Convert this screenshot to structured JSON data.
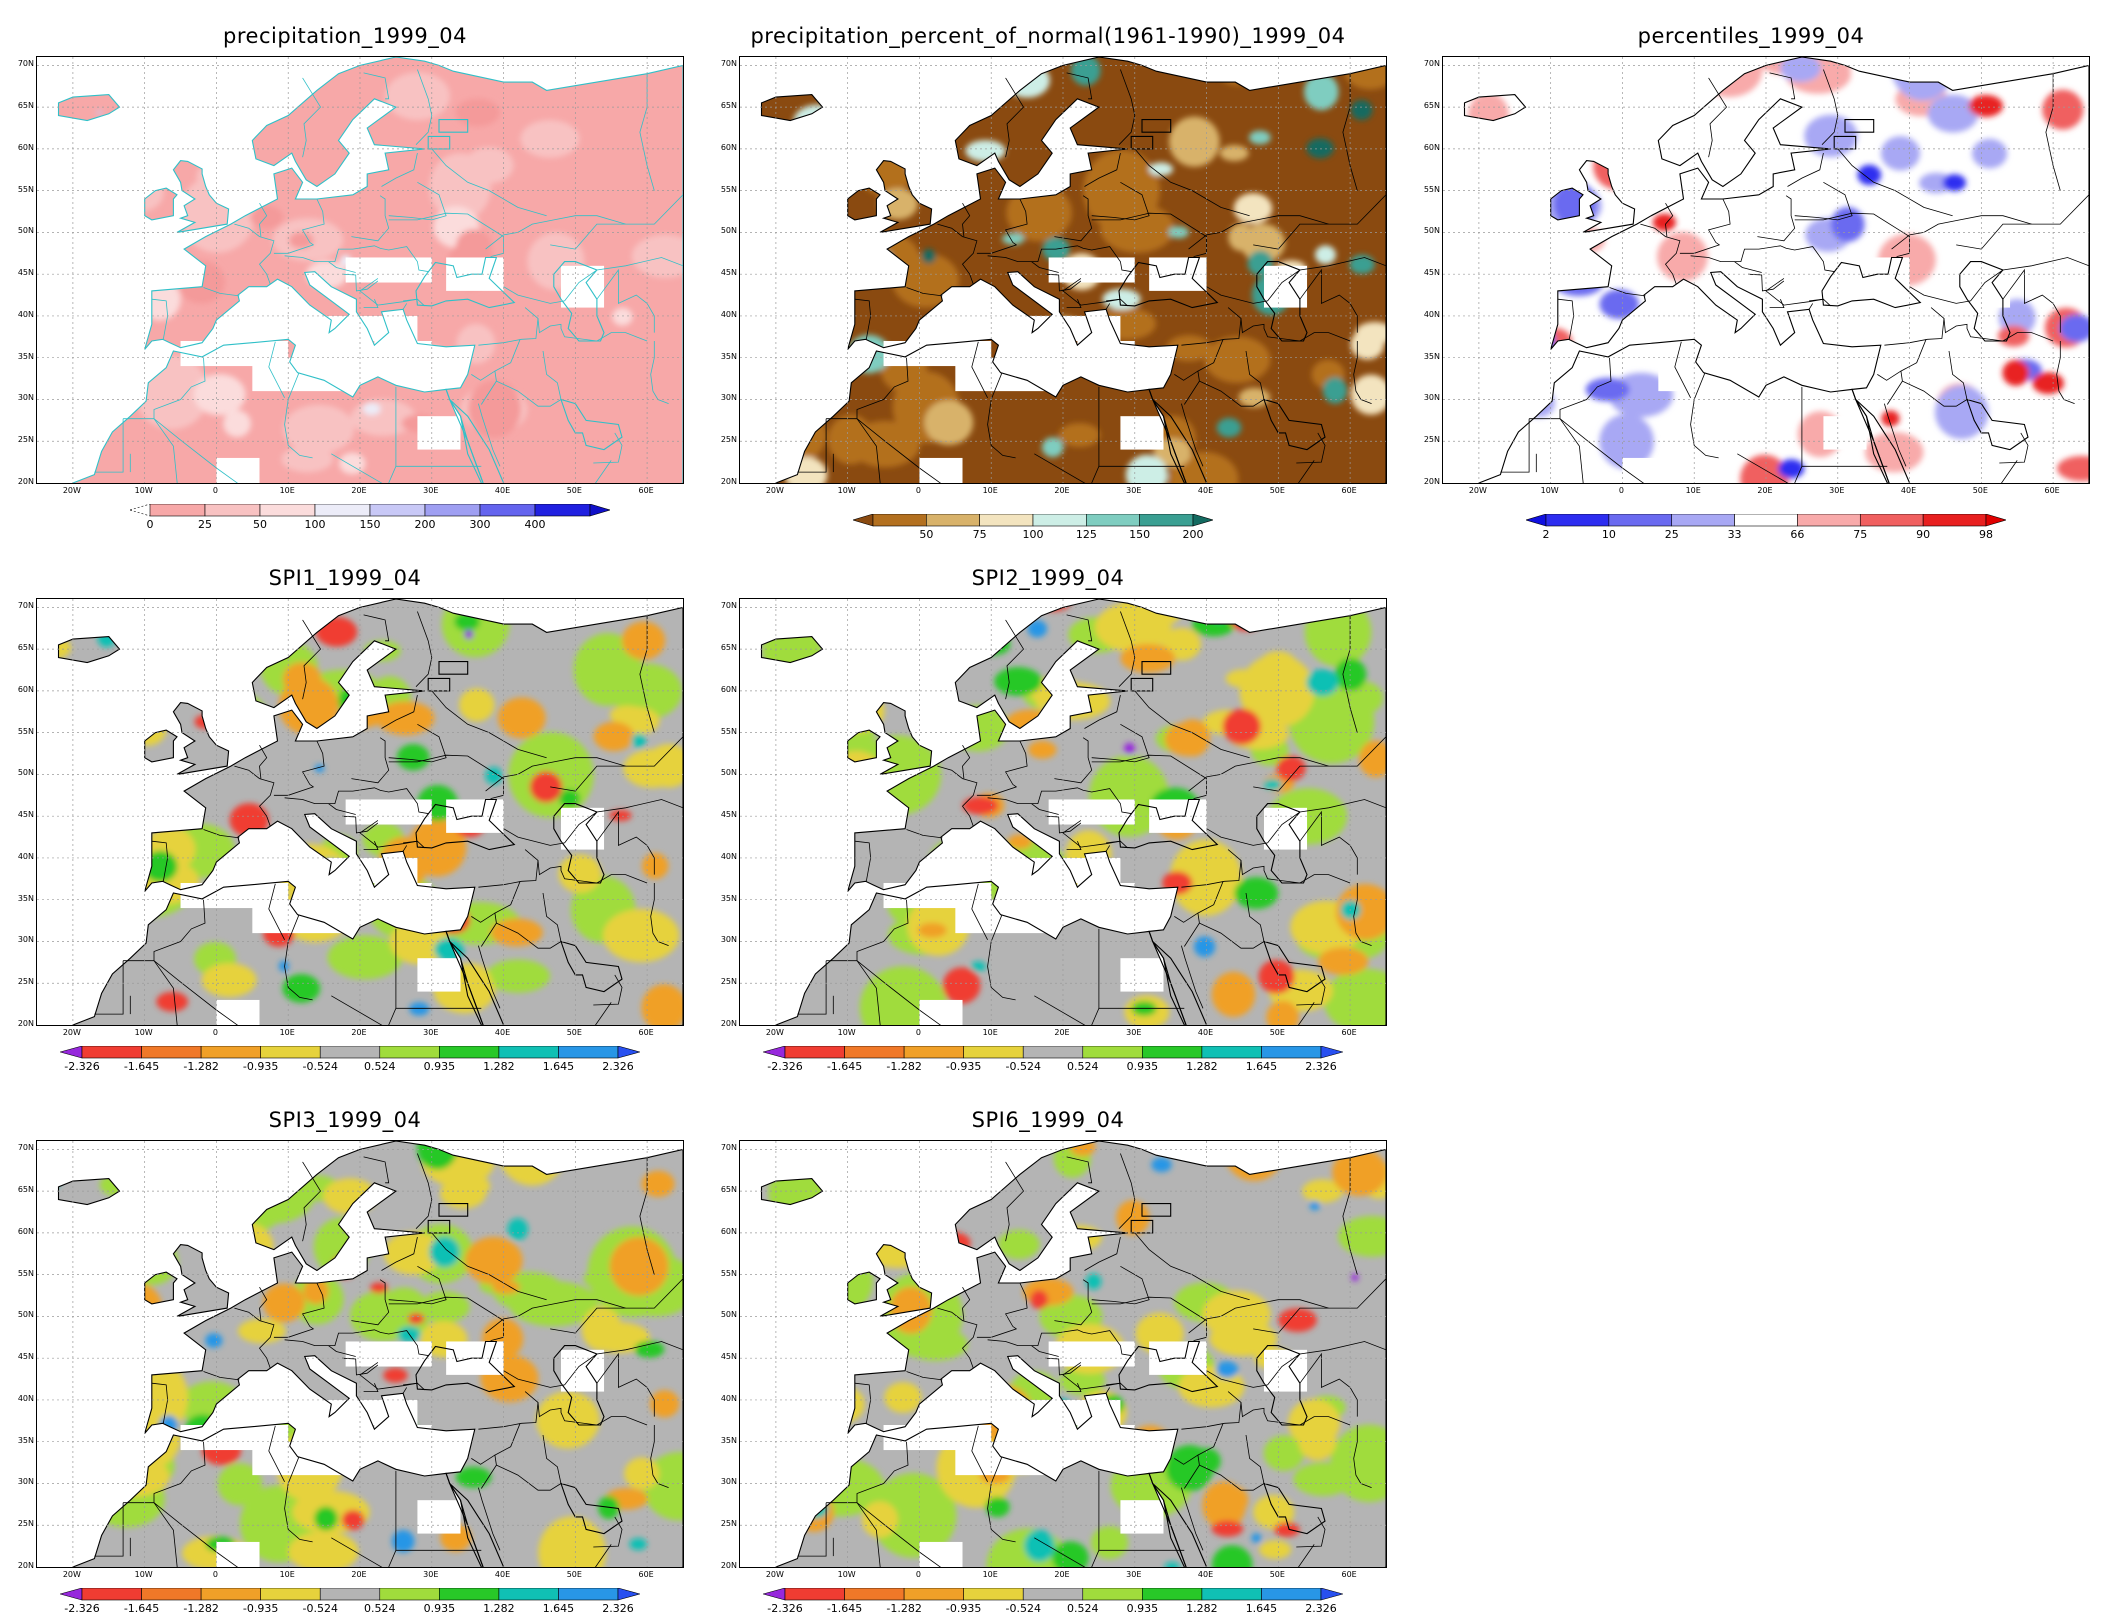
{
  "panels": [
    {
      "id": "precip",
      "title": "precipitation_1999_04",
      "scheme": "precip",
      "cbar": {
        "colors": [
          "#f7a8a8",
          "#f8c2c2",
          "#fbdcdc",
          "#ececf8",
          "#c8c8f6",
          "#9f9ff2",
          "#6464ee",
          "#2020e0"
        ],
        "labels": [
          "0",
          "25",
          "50",
          "100",
          "150",
          "200",
          "300",
          "400"
        ],
        "left_tri": "none",
        "right_tri": "#1010c8"
      }
    },
    {
      "id": "pct",
      "title": "precipitation_percent_of_normal(1961-1990)_1999_04",
      "scheme": "pct",
      "cbar": {
        "colors": [
          "#b3701f",
          "#d8b26a",
          "#f3e4bf",
          "#cdeee6",
          "#7fcdc0",
          "#3a9f92"
        ],
        "labels": [
          "50",
          "75",
          "100",
          "125",
          "150",
          "200"
        ],
        "left_tri": "#8a4a10",
        "right_tri": "#136a60"
      }
    },
    {
      "id": "perc",
      "title": "percentiles_1999_04",
      "scheme": "perc",
      "cbar": {
        "colors": [
          "#2d2df0",
          "#6a6af0",
          "#a8a8f4",
          "#ffffff",
          "#f8aaaa",
          "#f06060",
          "#e82020"
        ],
        "labels": [
          "2",
          "10",
          "25",
          "33",
          "66",
          "75",
          "90",
          "98"
        ],
        "left_tri": "#1010e0",
        "right_tri": "#e00000"
      }
    },
    {
      "id": "spi1",
      "title": "SPI1_1999_04",
      "scheme": "spi",
      "cbar_ref": "spi"
    },
    {
      "id": "spi2",
      "title": "SPI2_1999_04",
      "scheme": "spi",
      "cbar_ref": "spi"
    },
    {
      "id": "spi3",
      "title": "SPI3_1999_04",
      "scheme": "spi",
      "cbar_ref": "spi"
    },
    {
      "id": "spi6",
      "title": "SPI6_1999_04",
      "scheme": "spi",
      "cbar_ref": "spi"
    }
  ],
  "spi_cbar": {
    "colors": [
      "#f03c32",
      "#f07828",
      "#f0a028",
      "#e6d23c",
      "#b4b4b4",
      "#a0dc3c",
      "#28c828",
      "#10c0b4",
      "#2896e6"
    ],
    "labels": [
      "-2.326",
      "-1.645",
      "-1.282",
      "-0.935",
      "-0.524",
      "0.524",
      "0.935",
      "1.282",
      "1.645",
      "2.326"
    ],
    "left_tri": "#9628dc",
    "right_tri": "#2850f0"
  },
  "lat_labels": [
    "70N",
    "65N",
    "60N",
    "55N",
    "50N",
    "45N",
    "40N",
    "35N",
    "30N",
    "25N",
    "20N"
  ],
  "lon_labels": [
    "20W",
    "10W",
    "0",
    "10E",
    "20E",
    "30E",
    "40E",
    "50E",
    "60E"
  ],
  "colors": {
    "precip_coast": "#30c0c8",
    "border": "#000000",
    "grid": "#9a9a9a"
  }
}
